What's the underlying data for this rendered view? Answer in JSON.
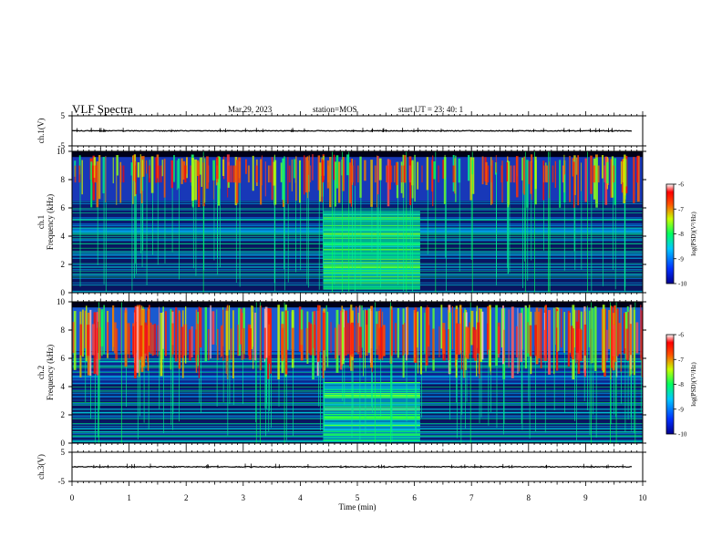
{
  "header": {
    "title": "VLF Spectra",
    "date": "Mar.29, 2023",
    "station": "station=MOS",
    "start": "start  UT =   23: 40: 1"
  },
  "chart_data": [
    {
      "type": "line",
      "name": "ch1-voltage",
      "ylabel": "ch.1(V)",
      "ylim": [
        -5,
        5
      ],
      "yticks": [
        5,
        -5
      ],
      "x": [
        0,
        10
      ],
      "values": [
        0,
        0
      ]
    },
    {
      "type": "heatmap",
      "name": "ch1-spectrogram",
      "ylabel": "ch.1\nFrequency (kHz)",
      "ylim": [
        0,
        10
      ],
      "yticks": [
        0,
        2,
        4,
        6,
        8,
        10
      ],
      "xlim": [
        0,
        10
      ],
      "colorbar": {
        "label": "log(PSD)(V²/Hz)",
        "range": [
          -10,
          -6
        ],
        "ticks": [
          -6,
          -7,
          -8,
          -9,
          -10
        ]
      }
    },
    {
      "type": "heatmap",
      "name": "ch2-spectrogram",
      "ylabel": "ch.2\nFrequency (kHz)",
      "ylim": [
        0,
        10
      ],
      "yticks": [
        0,
        2,
        4,
        6,
        8,
        10
      ],
      "xlim": [
        0,
        10
      ],
      "colorbar": {
        "label": "log(PSD)(V²/Hz)",
        "range": [
          -10,
          -6
        ],
        "ticks": [
          -6,
          -7,
          -8,
          -9,
          -10
        ]
      }
    },
    {
      "type": "line",
      "name": "ch3-voltage",
      "ylabel": "ch.3(V)",
      "ylim": [
        -5,
        5
      ],
      "yticks": [
        5,
        -5
      ],
      "x": [
        0,
        10
      ],
      "values": [
        0,
        0
      ]
    }
  ],
  "xaxis": {
    "label": "Time  (min)",
    "xlim": [
      0,
      10
    ],
    "ticks": [
      0,
      1,
      2,
      3,
      4,
      5,
      6,
      7,
      8,
      9,
      10
    ]
  },
  "colors": {
    "background": "#000020",
    "low": "#0a1a6e",
    "mid": "#00c8ff",
    "high": "#ff2020"
  }
}
